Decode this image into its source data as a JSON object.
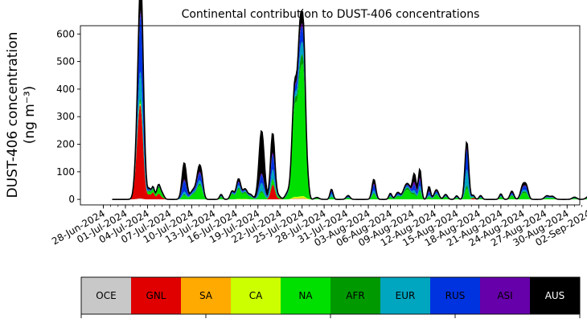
{
  "chart_data": {
    "type": "area",
    "title": "Continental contribution to DUST-406 concentrations",
    "ylabel_line1": "DUST-406 concentration",
    "ylabel_line2": "(ng m⁻³)",
    "xlabel": "",
    "ylim": [
      -20,
      630
    ],
    "yticks": [
      0,
      100,
      200,
      300,
      400,
      500,
      600
    ],
    "x_range": [
      "2024-06-28",
      "2024-09-04"
    ],
    "x_tick_dates": [
      "2024-06-28",
      "2024-07-01",
      "2024-07-04",
      "2024-07-07",
      "2024-07-10",
      "2024-07-13",
      "2024-07-16",
      "2024-07-19",
      "2024-07-22",
      "2024-07-25",
      "2024-07-28",
      "2024-07-31",
      "2024-08-03",
      "2024-08-06",
      "2024-08-09",
      "2024-08-12",
      "2024-08-15",
      "2024-08-18",
      "2024-08-21",
      "2024-08-24",
      "2024-08-27",
      "2024-08-30",
      "2024-09-02"
    ],
    "x_tick_labels": [
      "28-Jun-2024",
      "01-Jul-2024",
      "04-Jul-2024",
      "07-Jul-2024",
      "10-Jul-2024",
      "13-Jul-2024",
      "16-Jul-2024",
      "19-Jul-2024",
      "22-Jul-2024",
      "25-Jul-2024",
      "28-Jul-2024",
      "31-Jul-2024",
      "03-Aug-2024",
      "06-Aug-2024",
      "09-Aug-2024",
      "12-Aug-2024",
      "15-Aug-2024",
      "18-Aug-2024",
      "21-Aug-2024",
      "24-Aug-2024",
      "27-Aug-2024",
      "30-Aug-2024",
      "02-Sep-2024"
    ],
    "total_line_color": "#000000",
    "series": [
      {
        "name": "OCE",
        "color": "#c8c8c8"
      },
      {
        "name": "GNL",
        "color": "#e00000"
      },
      {
        "name": "SA",
        "color": "#ffaa00"
      },
      {
        "name": "CA",
        "color": "#ccff00"
      },
      {
        "name": "NA",
        "color": "#00e000"
      },
      {
        "name": "AFR",
        "color": "#009a00"
      },
      {
        "name": "EUR",
        "color": "#00a5c0"
      },
      {
        "name": "RUS",
        "color": "#0033e0"
      },
      {
        "name": "ASI",
        "color": "#6600aa"
      },
      {
        "name": "AUS",
        "color": "#000000"
      }
    ],
    "legend_text_colors": [
      "#000000",
      "#000000",
      "#000000",
      "#000000",
      "#000000",
      "#000000",
      "#000000",
      "#000000",
      "#000000",
      "#ffffff"
    ],
    "peaks": [
      {
        "date": "2024-07-02T18:00",
        "width_days": 0.35,
        "OCE": 2,
        "GNL": 190,
        "SA": 2,
        "CA": 2,
        "NA": 5,
        "AFR": 2,
        "EUR": 30,
        "RUS": 40,
        "ASI": 3,
        "AUS": 10
      },
      {
        "date": "2024-07-03T03:00",
        "width_days": 0.3,
        "OCE": 2,
        "GNL": 200,
        "SA": 2,
        "CA": 2,
        "NA": 5,
        "AFR": 5,
        "EUR": 80,
        "RUS": 180,
        "ASI": 10,
        "AUS": 110
      },
      {
        "date": "2024-07-03T12:00",
        "width_days": 0.3,
        "OCE": 0,
        "GNL": 40,
        "SA": 0,
        "CA": 0,
        "NA": 3,
        "AFR": 2,
        "EUR": 10,
        "RUS": 20,
        "ASI": 2,
        "AUS": 5
      },
      {
        "date": "2024-07-04T06:00",
        "width_days": 0.2,
        "OCE": 0,
        "GNL": 15,
        "SA": 0,
        "CA": 0,
        "NA": 10,
        "AFR": 3,
        "EUR": 2,
        "RUS": 2,
        "ASI": 0,
        "AUS": 3
      },
      {
        "date": "2024-07-04T18:00",
        "width_days": 0.2,
        "OCE": 0,
        "GNL": 25,
        "SA": 0,
        "CA": 0,
        "NA": 10,
        "AFR": 3,
        "EUR": 2,
        "RUS": 2,
        "ASI": 0,
        "AUS": 3
      },
      {
        "date": "2024-07-05T12:00",
        "width_days": 0.25,
        "OCE": 0,
        "GNL": 20,
        "SA": 0,
        "CA": 0,
        "NA": 20,
        "AFR": 5,
        "EUR": 2,
        "RUS": 2,
        "ASI": 0,
        "AUS": 3
      },
      {
        "date": "2024-07-06T00:00",
        "width_days": 0.25,
        "OCE": 0,
        "GNL": 5,
        "SA": 0,
        "CA": 0,
        "NA": 8,
        "AFR": 2,
        "EUR": 1,
        "RUS": 1,
        "ASI": 0,
        "AUS": 2
      },
      {
        "date": "2024-07-09T00:00",
        "width_days": 0.3,
        "OCE": 0,
        "GNL": 0,
        "SA": 0,
        "CA": 0,
        "NA": 15,
        "AFR": 3,
        "EUR": 10,
        "RUS": 40,
        "ASI": 5,
        "AUS": 60
      },
      {
        "date": "2024-07-10T06:00",
        "width_days": 0.4,
        "OCE": 0,
        "GNL": 0,
        "SA": 0,
        "CA": 0,
        "NA": 18,
        "AFR": 3,
        "EUR": 5,
        "RUS": 4,
        "ASI": 2,
        "AUS": 3
      },
      {
        "date": "2024-07-11T00:00",
        "width_days": 0.3,
        "OCE": 0,
        "GNL": 0,
        "SA": 0,
        "CA": 0,
        "NA": 40,
        "AFR": 5,
        "EUR": 10,
        "RUS": 20,
        "ASI": 5,
        "AUS": 20
      },
      {
        "date": "2024-07-11T09:00",
        "width_days": 0.25,
        "OCE": 0,
        "GNL": 0,
        "SA": 0,
        "CA": 0,
        "NA": 20,
        "AFR": 3,
        "EUR": 5,
        "RUS": 10,
        "ASI": 2,
        "AUS": 10
      },
      {
        "date": "2024-07-14T00:00",
        "width_days": 0.2,
        "OCE": 0,
        "GNL": 0,
        "SA": 0,
        "CA": 0,
        "NA": 8,
        "AFR": 2,
        "EUR": 2,
        "RUS": 3,
        "ASI": 1,
        "AUS": 2
      },
      {
        "date": "2024-07-15T12:00",
        "width_days": 0.25,
        "OCE": 0,
        "GNL": 0,
        "SA": 0,
        "CA": 0,
        "NA": 18,
        "AFR": 3,
        "EUR": 3,
        "RUS": 3,
        "ASI": 1,
        "AUS": 2
      },
      {
        "date": "2024-07-16T09:00",
        "width_days": 0.3,
        "OCE": 0,
        "GNL": 0,
        "SA": 0,
        "CA": 2,
        "NA": 35,
        "AFR": 5,
        "EUR": 10,
        "RUS": 10,
        "ASI": 3,
        "AUS": 10
      },
      {
        "date": "2024-07-17T06:00",
        "width_days": 0.3,
        "OCE": 0,
        "GNL": 0,
        "SA": 0,
        "CA": 2,
        "NA": 20,
        "AFR": 5,
        "EUR": 3,
        "RUS": 3,
        "ASI": 1,
        "AUS": 3
      },
      {
        "date": "2024-07-18T00:00",
        "width_days": 0.3,
        "OCE": 0,
        "GNL": 0,
        "SA": 0,
        "CA": 0,
        "NA": 8,
        "AFR": 2,
        "EUR": 2,
        "RUS": 2,
        "ASI": 1,
        "AUS": 2
      },
      {
        "date": "2024-07-19T12:00",
        "width_days": 0.35,
        "OCE": 0,
        "GNL": 0,
        "SA": 0,
        "CA": 0,
        "NA": 25,
        "AFR": 5,
        "EUR": 30,
        "RUS": 30,
        "ASI": 5,
        "AUS": 155
      },
      {
        "date": "2024-07-20T21:00",
        "width_days": 0.25,
        "OCE": 0,
        "GNL": 25,
        "SA": 0,
        "CA": 0,
        "NA": 10,
        "AFR": 2,
        "EUR": 20,
        "RUS": 30,
        "ASI": 5,
        "AUS": 40
      },
      {
        "date": "2024-07-21T03:00",
        "width_days": 0.25,
        "OCE": 0,
        "GNL": 35,
        "SA": 0,
        "CA": 0,
        "NA": 10,
        "AFR": 2,
        "EUR": 20,
        "RUS": 30,
        "ASI": 5,
        "AUS": 40
      },
      {
        "date": "2024-07-21T18:00",
        "width_days": 0.3,
        "OCE": 0,
        "GNL": 3,
        "SA": 0,
        "CA": 0,
        "NA": 5,
        "AFR": 2,
        "EUR": 1,
        "RUS": 1,
        "ASI": 0,
        "AUS": 2
      },
      {
        "date": "2024-07-23T00:00",
        "width_days": 0.3,
        "OCE": 0,
        "GNL": 0,
        "SA": 0,
        "CA": 0,
        "NA": 10,
        "AFR": 3,
        "EUR": 3,
        "RUS": 3,
        "ASI": 1,
        "AUS": 2
      },
      {
        "date": "2024-07-24T00:00",
        "width_days": 0.35,
        "OCE": 2,
        "GNL": 0,
        "SA": 2,
        "CA": 5,
        "NA": 320,
        "AFR": 20,
        "EUR": 15,
        "RUS": 20,
        "ASI": 5,
        "AUS": 20
      },
      {
        "date": "2024-07-24T18:00",
        "width_days": 0.3,
        "OCE": 2,
        "GNL": 0,
        "SA": 2,
        "CA": 5,
        "NA": 380,
        "AFR": 30,
        "EUR": 40,
        "RUS": 50,
        "ASI": 10,
        "AUS": 40
      },
      {
        "date": "2024-07-25T06:00",
        "width_days": 0.25,
        "OCE": 2,
        "GNL": 0,
        "SA": 2,
        "CA": 5,
        "NA": 340,
        "AFR": 20,
        "EUR": 30,
        "RUS": 30,
        "ASI": 10,
        "AUS": 25
      },
      {
        "date": "2024-07-25T18:00",
        "width_days": 0.2,
        "OCE": 0,
        "GNL": 0,
        "SA": 0,
        "CA": 2,
        "NA": 40,
        "AFR": 5,
        "EUR": 5,
        "RUS": 5,
        "ASI": 1,
        "AUS": 3
      },
      {
        "date": "2024-07-27T00:00",
        "width_days": 0.3,
        "OCE": 0,
        "GNL": 0,
        "SA": 0,
        "CA": 0,
        "NA": 3,
        "AFR": 1,
        "EUR": 1,
        "RUS": 1,
        "ASI": 0,
        "AUS": 1
      },
      {
        "date": "2024-07-29T00:00",
        "width_days": 0.2,
        "OCE": 0,
        "GNL": 0,
        "SA": 0,
        "CA": 0,
        "NA": 8,
        "AFR": 2,
        "EUR": 10,
        "RUS": 10,
        "ASI": 2,
        "AUS": 5
      },
      {
        "date": "2024-07-31T06:00",
        "width_days": 0.25,
        "OCE": 0,
        "GNL": 0,
        "SA": 0,
        "CA": 0,
        "NA": 5,
        "AFR": 1,
        "EUR": 2,
        "RUS": 3,
        "ASI": 1,
        "AUS": 2
      },
      {
        "date": "2024-08-03T18:00",
        "width_days": 0.25,
        "OCE": 0,
        "GNL": 0,
        "SA": 0,
        "CA": 0,
        "NA": 20,
        "AFR": 3,
        "EUR": 10,
        "RUS": 20,
        "ASI": 5,
        "AUS": 15
      },
      {
        "date": "2024-08-06T00:00",
        "width_days": 0.2,
        "OCE": 0,
        "GNL": 0,
        "SA": 0,
        "CA": 0,
        "NA": 8,
        "AFR": 2,
        "EUR": 3,
        "RUS": 5,
        "ASI": 1,
        "AUS": 3
      },
      {
        "date": "2024-08-07T00:00",
        "width_days": 0.3,
        "OCE": 0,
        "GNL": 0,
        "SA": 0,
        "CA": 0,
        "NA": 10,
        "AFR": 3,
        "EUR": 3,
        "RUS": 5,
        "ASI": 1,
        "AUS": 3
      },
      {
        "date": "2024-08-08T00:00",
        "width_days": 0.35,
        "OCE": 0,
        "GNL": 0,
        "SA": 0,
        "CA": 0,
        "NA": 20,
        "AFR": 5,
        "EUR": 3,
        "RUS": 3,
        "ASI": 1,
        "AUS": 3
      },
      {
        "date": "2024-08-08T12:00",
        "width_days": 0.35,
        "OCE": 0,
        "GNL": 0,
        "SA": 0,
        "CA": 0,
        "NA": 25,
        "AFR": 5,
        "EUR": 3,
        "RUS": 3,
        "ASI": 1,
        "AUS": 3
      },
      {
        "date": "2024-08-09T06:00",
        "width_days": 0.25,
        "OCE": 0,
        "GNL": 0,
        "SA": 0,
        "CA": 0,
        "NA": 15,
        "AFR": 5,
        "EUR": 10,
        "RUS": 20,
        "ASI": 10,
        "AUS": 30
      },
      {
        "date": "2024-08-10T00:00",
        "width_days": 0.2,
        "OCE": 0,
        "GNL": 0,
        "SA": 0,
        "CA": 0,
        "NA": 30,
        "AFR": 5,
        "EUR": 15,
        "RUS": 20,
        "ASI": 10,
        "AUS": 30
      },
      {
        "date": "2024-08-11T06:00",
        "width_days": 0.2,
        "OCE": 0,
        "GNL": 0,
        "SA": 0,
        "CA": 0,
        "NA": 10,
        "AFR": 2,
        "EUR": 5,
        "RUS": 10,
        "ASI": 5,
        "AUS": 15
      },
      {
        "date": "2024-08-12T06:00",
        "width_days": 0.3,
        "OCE": 0,
        "GNL": 0,
        "SA": 0,
        "CA": 0,
        "NA": 15,
        "AFR": 3,
        "EUR": 5,
        "RUS": 5,
        "ASI": 2,
        "AUS": 5
      },
      {
        "date": "2024-08-13T12:00",
        "width_days": 0.25,
        "OCE": 0,
        "GNL": 0,
        "SA": 0,
        "CA": 0,
        "NA": 8,
        "AFR": 2,
        "EUR": 2,
        "RUS": 3,
        "ASI": 1,
        "AUS": 2
      },
      {
        "date": "2024-08-15T00:00",
        "width_days": 0.2,
        "OCE": 0,
        "GNL": 0,
        "SA": 0,
        "CA": 0,
        "NA": 5,
        "AFR": 1,
        "EUR": 2,
        "RUS": 2,
        "ASI": 1,
        "AUS": 2
      },
      {
        "date": "2024-08-16T09:00",
        "width_days": 0.25,
        "OCE": 0,
        "GNL": 0,
        "SA": 0,
        "CA": 0,
        "NA": 40,
        "AFR": 10,
        "EUR": 60,
        "RUS": 70,
        "ASI": 10,
        "AUS": 20
      },
      {
        "date": "2024-08-17T06:00",
        "width_days": 0.2,
        "OCE": 0,
        "GNL": 5,
        "SA": 0,
        "CA": 0,
        "NA": 3,
        "AFR": 1,
        "EUR": 2,
        "RUS": 2,
        "ASI": 0,
        "AUS": 2
      },
      {
        "date": "2024-08-18T06:00",
        "width_days": 0.2,
        "OCE": 0,
        "GNL": 0,
        "SA": 0,
        "CA": 0,
        "NA": 5,
        "AFR": 1,
        "EUR": 2,
        "RUS": 3,
        "ASI": 1,
        "AUS": 2
      },
      {
        "date": "2024-08-21T00:00",
        "width_days": 0.2,
        "OCE": 0,
        "GNL": 0,
        "SA": 0,
        "CA": 0,
        "NA": 8,
        "AFR": 2,
        "EUR": 3,
        "RUS": 3,
        "ASI": 1,
        "AUS": 3
      },
      {
        "date": "2024-08-22T12:00",
        "width_days": 0.25,
        "OCE": 0,
        "GNL": 0,
        "SA": 0,
        "CA": 0,
        "NA": 12,
        "AFR": 3,
        "EUR": 3,
        "RUS": 5,
        "ASI": 2,
        "AUS": 5
      },
      {
        "date": "2024-08-24T00:00",
        "width_days": 0.3,
        "OCE": 0,
        "GNL": 0,
        "SA": 0,
        "CA": 0,
        "NA": 20,
        "AFR": 5,
        "EUR": 5,
        "RUS": 10,
        "ASI": 2,
        "AUS": 10
      },
      {
        "date": "2024-08-24T12:00",
        "width_days": 0.25,
        "OCE": 0,
        "GNL": 0,
        "SA": 0,
        "CA": 0,
        "NA": 15,
        "AFR": 3,
        "EUR": 5,
        "RUS": 10,
        "ASI": 2,
        "AUS": 5
      },
      {
        "date": "2024-08-27T06:00",
        "width_days": 0.3,
        "OCE": 0,
        "GNL": 0,
        "SA": 0,
        "CA": 0,
        "NA": 5,
        "AFR": 1,
        "EUR": 2,
        "RUS": 2,
        "ASI": 1,
        "AUS": 2
      },
      {
        "date": "2024-08-28T00:00",
        "width_days": 0.3,
        "OCE": 0,
        "GNL": 0,
        "SA": 0,
        "CA": 0,
        "NA": 5,
        "AFR": 1,
        "EUR": 1,
        "RUS": 2,
        "ASI": 1,
        "AUS": 1
      },
      {
        "date": "2024-08-31T00:00",
        "width_days": 0.3,
        "OCE": 0,
        "GNL": 0,
        "SA": 0,
        "CA": 0,
        "NA": 3,
        "AFR": 1,
        "EUR": 1,
        "RUS": 2,
        "ASI": 0,
        "AUS": 1
      },
      {
        "date": "2024-09-02T00:00",
        "width_days": 0.35,
        "OCE": 0,
        "GNL": 0,
        "SA": 0,
        "CA": 0,
        "NA": 5,
        "AFR": 1,
        "EUR": 1,
        "RUS": 2,
        "ASI": 1,
        "AUS": 2
      },
      {
        "date": "2024-09-02T12:00",
        "width_days": 0.3,
        "OCE": 0,
        "GNL": 0,
        "SA": 0,
        "CA": 0,
        "NA": 3,
        "AFR": 1,
        "EUR": 1,
        "RUS": 1,
        "ASI": 0,
        "AUS": 1
      }
    ]
  }
}
